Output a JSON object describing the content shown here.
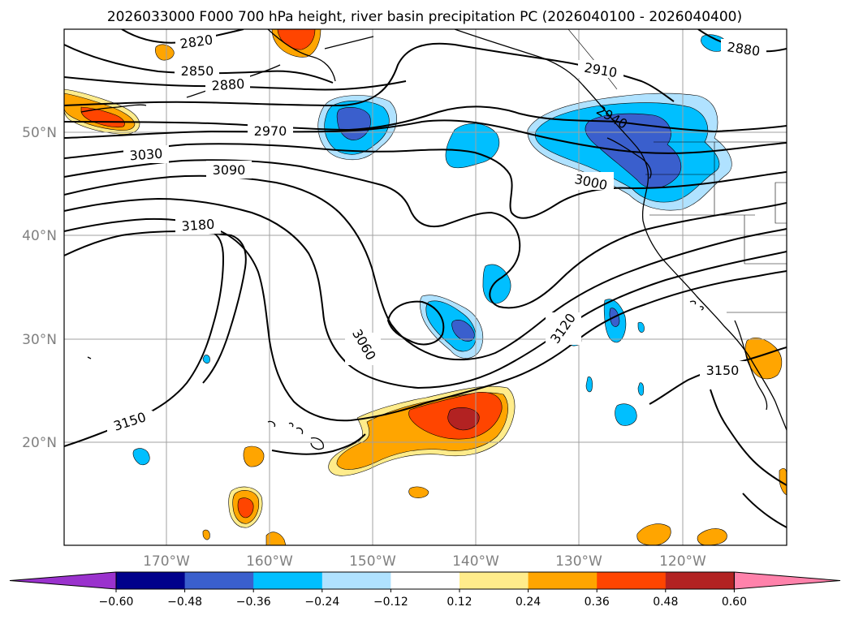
{
  "title": "2026033000 F000 700 hPa height, river basin precipitation PC (2026040100 - 2026040400)",
  "lat_labels": [
    "50°N",
    "40°N",
    "30°N",
    "20°N"
  ],
  "lon_labels": [
    "170°W",
    "160°W",
    "150°W",
    "140°W",
    "130°W",
    "120°W"
  ],
  "contour_labels": [
    "2820",
    "2850",
    "2880",
    "2880",
    "2910",
    "2940",
    "2970",
    "3000",
    "3030",
    "3060",
    "3090",
    "3120",
    "3150",
    "3150",
    "3180"
  ],
  "colorbar": {
    "ticks": [
      "−0.60",
      "−0.48",
      "−0.36",
      "−0.24",
      "−0.12",
      "0.12",
      "0.24",
      "0.36",
      "0.48",
      "0.60"
    ],
    "colors": [
      "#9a32cd",
      "#00008b",
      "#3a5fcd",
      "#00bfff",
      "#b0e2ff",
      "#ffffff",
      "#ffec8b",
      "#ffa500",
      "#ff4500",
      "#b22222",
      "#ff82ab"
    ]
  },
  "map_data": {
    "projection": "PlateCarree",
    "extent": {
      "lon": [
        -180,
        -110
      ],
      "lat": [
        10,
        60
      ]
    },
    "field_contours": "700 hPa geopotential height (m)",
    "field_shaded": "river basin precipitation PC"
  }
}
